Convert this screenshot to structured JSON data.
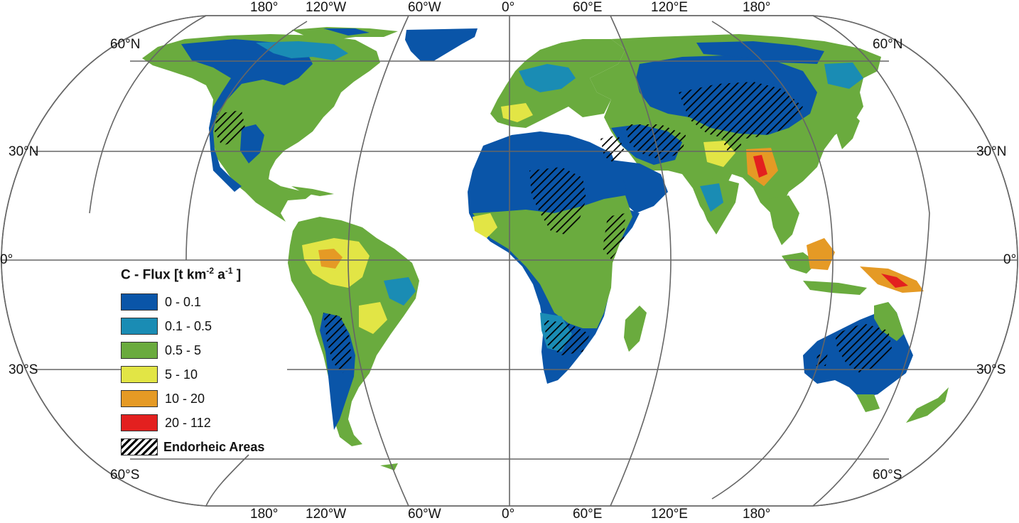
{
  "map": {
    "projection": "Eckert-like pseudocylindrical world projection",
    "colors": {
      "c1": "#0a55a8",
      "c2": "#1a8cb4",
      "c3": "#6aab3e",
      "c4": "#e2e545",
      "c5": "#e59a25",
      "c6": "#e3201f",
      "ocean": "#ffffff",
      "graticule": "#666666"
    }
  },
  "labels": {
    "top": [
      "180°",
      "120°W",
      "60°W",
      "0°",
      "60°E",
      "120°E",
      "180°"
    ],
    "bottom": [
      "180°",
      "120°W",
      "60°W",
      "0°",
      "60°E",
      "120°E",
      "180°"
    ],
    "left": [
      "60°N",
      "30°N",
      "0°",
      "30°S",
      "60°S"
    ],
    "right": [
      "60°N",
      "30°N",
      "0°",
      "30°S",
      "60°S"
    ]
  },
  "legend": {
    "title_main": "C - Flux [t km",
    "title_sup1": "-2",
    "title_mid": " a",
    "title_sup2": "-1",
    "title_end": " ]",
    "items": [
      {
        "label": "0 - 0.1",
        "color": "#0a55a8"
      },
      {
        "label": "0.1 - 0.5",
        "color": "#1a8cb4"
      },
      {
        "label": "0.5 - 5",
        "color": "#6aab3e"
      },
      {
        "label": "5 - 10",
        "color": "#e2e545"
      },
      {
        "label": "10 - 20",
        "color": "#e59a25"
      },
      {
        "label": "20 - 112",
        "color": "#e3201f"
      }
    ],
    "endorheic_label": "Endorheic Areas"
  }
}
